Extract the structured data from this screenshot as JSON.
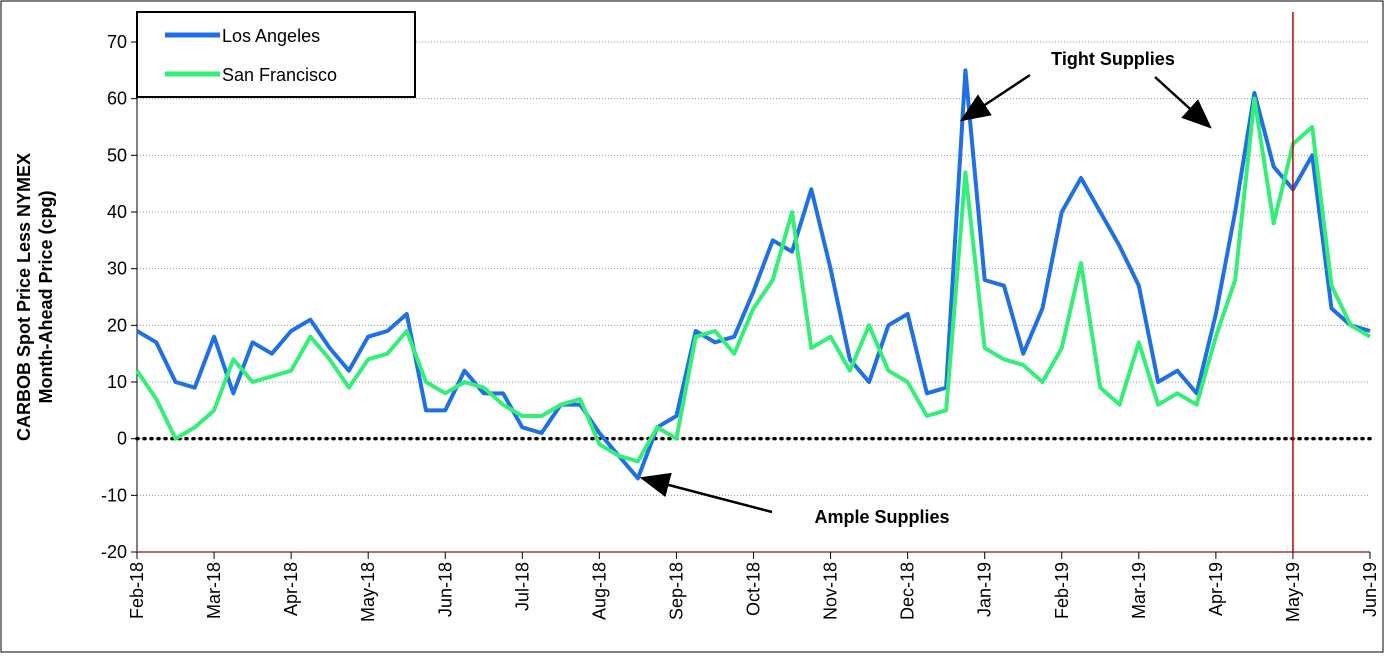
{
  "chart_data": {
    "type": "line",
    "ylabel": [
      "CARBOB Spot Price Less NYMEX",
      "Month-Ahead Price (cpg)"
    ],
    "annotations": [
      "Tight Supplies",
      "Ample Supplies"
    ],
    "x": [
      0,
      0.25,
      0.5,
      0.75,
      1,
      1.25,
      1.5,
      1.75,
      2,
      2.25,
      2.5,
      2.75,
      3,
      3.25,
      3.5,
      3.75,
      4,
      4.25,
      4.5,
      4.75,
      5,
      5.25,
      5.5,
      5.75,
      6,
      6.25,
      6.5,
      6.75,
      7,
      7.25,
      7.5,
      7.75,
      8,
      8.25,
      8.5,
      8.75,
      9,
      9.25,
      9.5,
      9.75,
      10,
      10.25,
      10.5,
      10.75,
      11,
      11.25,
      11.5,
      11.75,
      12,
      12.25,
      12.5,
      12.75,
      13,
      13.25,
      13.5,
      13.75,
      14,
      14.25,
      14.5,
      14.75,
      15,
      15.25,
      15.5,
      15.75,
      16
    ],
    "series": [
      {
        "name": "Los Angeles",
        "color": "#1f6fe6",
        "values": [
          19,
          17,
          10,
          9,
          18,
          8,
          17,
          15,
          19,
          21,
          16,
          12,
          18,
          19,
          22,
          5,
          5,
          12,
          8,
          8,
          2,
          1,
          6,
          6,
          1,
          -3,
          -7,
          2,
          4,
          19,
          17,
          18,
          26,
          35,
          33,
          44,
          30,
          14,
          10,
          20,
          22,
          8,
          9,
          65,
          28,
          27,
          15,
          23,
          40,
          46,
          40,
          34,
          27,
          10,
          12,
          8,
          22,
          40,
          61,
          48,
          44,
          50,
          23,
          20,
          19
        ]
      },
      {
        "name": "San Francisco",
        "color": "#33ee77",
        "values": [
          12,
          7,
          0,
          2,
          5,
          14,
          10,
          11,
          12,
          18,
          14,
          9,
          14,
          15,
          19,
          10,
          8,
          10,
          9,
          6,
          4,
          4,
          6,
          7,
          -1,
          -3,
          -4,
          2,
          0,
          18,
          19,
          15,
          23,
          28,
          40,
          16,
          18,
          12,
          20,
          12,
          10,
          4,
          5,
          47,
          16,
          14,
          13,
          10,
          16,
          31,
          9,
          6,
          17,
          6,
          8,
          6,
          18,
          28,
          60,
          38,
          52,
          55,
          27,
          20,
          18
        ]
      }
    ],
    "xlim": [
      0,
      16
    ],
    "xticks": [
      {
        "value": 0,
        "label": "Feb-18"
      },
      {
        "value": 1,
        "label": "Mar-18"
      },
      {
        "value": 2,
        "label": "Apr-18"
      },
      {
        "value": 3,
        "label": "May-18"
      },
      {
        "value": 4,
        "label": "Jun-18"
      },
      {
        "value": 5,
        "label": "Jul-18"
      },
      {
        "value": 6,
        "label": "Aug-18"
      },
      {
        "value": 7,
        "label": "Sep-18"
      },
      {
        "value": 8,
        "label": "Oct-18"
      },
      {
        "value": 9,
        "label": "Nov-18"
      },
      {
        "value": 10,
        "label": "Dec-18"
      },
      {
        "value": 11,
        "label": "Jan-19"
      },
      {
        "value": 12,
        "label": "Feb-19"
      },
      {
        "value": 13,
        "label": "Mar-19"
      },
      {
        "value": 14,
        "label": "Apr-19"
      },
      {
        "value": 15,
        "label": "May-19"
      },
      {
        "value": 16,
        "label": "Jun-19"
      }
    ],
    "ylim": [
      -20,
      70
    ],
    "yticks": [
      -20,
      -10,
      0,
      10,
      20,
      30,
      40,
      50,
      60,
      70
    ],
    "grid": true,
    "hline_y": 0,
    "vline_x": 15,
    "vline_color": "#c00000"
  }
}
